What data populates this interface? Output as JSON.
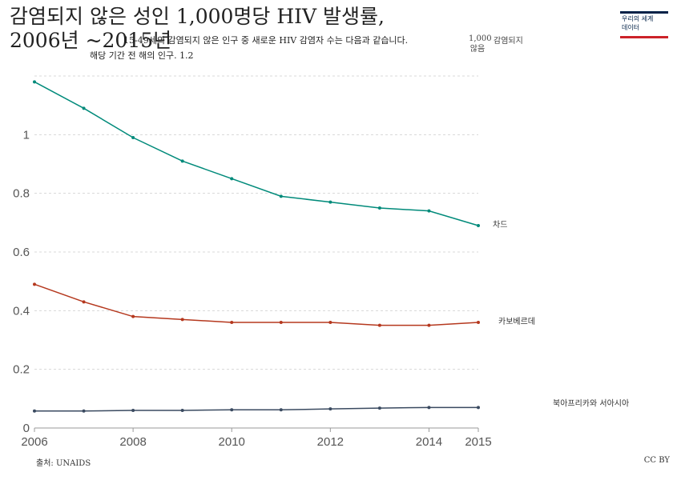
{
  "header": {
    "title": "감염되지 않은 성인 1,000명당 HIV 발생률,",
    "title_line2": "2006년 ~2015년",
    "subtitle_line1": "15-49세의 감염되지 않은 인구 중 새로운 HIV 감염자 수는 다음과 같습니다.",
    "subtitle_line2": "해당 기간 전 해의 인구.",
    "subtitle_tick": "1.2",
    "unit_a": "1,000",
    "unit_b": "않음",
    "unit_c": "감염되지"
  },
  "logo": {
    "line1": "우리의 세계",
    "line2": "데이터"
  },
  "footer": {
    "source": "출처: UNAIDS",
    "license": "CC BY"
  },
  "colors": {
    "chad": "#008a7a",
    "cabo": "#b5381e",
    "nafrica": "#3a4a60",
    "grid": "#d8d8d8"
  },
  "chart_data": {
    "type": "line",
    "x": [
      2006,
      2007,
      2008,
      2009,
      2010,
      2011,
      2012,
      2013,
      2014,
      2015
    ],
    "xticks": [
      "2006",
      "2008",
      "2010",
      "2012",
      "2014",
      "2015"
    ],
    "yticks": [
      "0",
      "0.2",
      "0.4",
      "0.6",
      "0.8",
      "1"
    ],
    "ylim": [
      0,
      1.2
    ],
    "xlim": [
      2006,
      2015
    ],
    "grid": true,
    "series": [
      {
        "name": "차드",
        "color": "#008a7a",
        "values": [
          1.18,
          1.09,
          0.99,
          0.91,
          0.85,
          0.79,
          0.77,
          0.75,
          0.74,
          0.69
        ]
      },
      {
        "name": "카보베르데",
        "color": "#b5381e",
        "values": [
          0.49,
          0.43,
          0.38,
          0.37,
          0.36,
          0.36,
          0.36,
          0.35,
          0.35,
          0.36
        ]
      },
      {
        "name": "북아프리카와 서아시아",
        "color": "#3a4a60",
        "values": [
          0.058,
          0.058,
          0.06,
          0.06,
          0.062,
          0.062,
          0.065,
          0.068,
          0.07,
          0.07
        ]
      }
    ]
  }
}
